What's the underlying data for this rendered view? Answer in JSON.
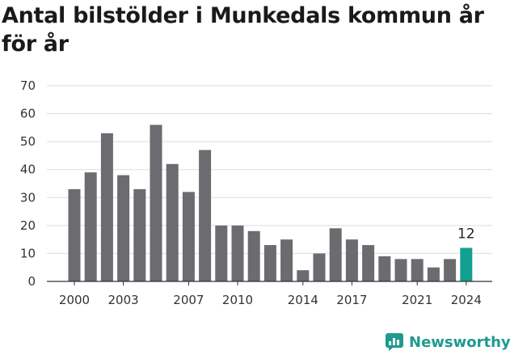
{
  "title": "Antal bilstölder i Munkedals kommun år för år",
  "brand": {
    "name": "Newsworthy",
    "icon": "newsworthy-logo-icon",
    "color": "#1f9a8e"
  },
  "colors": {
    "bar": "#6b6b70",
    "highlight": "#12a090",
    "grid": "#dddddd",
    "axis": "#333333"
  },
  "chart_data": {
    "type": "bar",
    "title": "Antal bilstölder i Munkedals kommun år för år",
    "xlabel": "",
    "ylabel": "",
    "categories": [
      "2000",
      "2001",
      "2002",
      "2003",
      "2004",
      "2005",
      "2006",
      "2007",
      "2008",
      "2009",
      "2010",
      "2011",
      "2012",
      "2013",
      "2014",
      "2015",
      "2016",
      "2017",
      "2018",
      "2019",
      "2020",
      "2021",
      "2022",
      "2023",
      "2024"
    ],
    "values": [
      33,
      39,
      53,
      38,
      33,
      56,
      42,
      32,
      47,
      20,
      20,
      18,
      13,
      15,
      4,
      10,
      19,
      15,
      13,
      9,
      8,
      8,
      5,
      8,
      12
    ],
    "tick_labels": [
      "2000",
      "2003",
      "2007",
      "2010",
      "2014",
      "2017",
      "2021",
      "2024"
    ],
    "yticks": [
      0,
      10,
      20,
      30,
      40,
      50,
      60,
      70
    ],
    "ylim": [
      0,
      70
    ],
    "grid": true,
    "highlight_index": 24,
    "data_labels": [
      {
        "index": 24,
        "text": "12"
      }
    ]
  }
}
